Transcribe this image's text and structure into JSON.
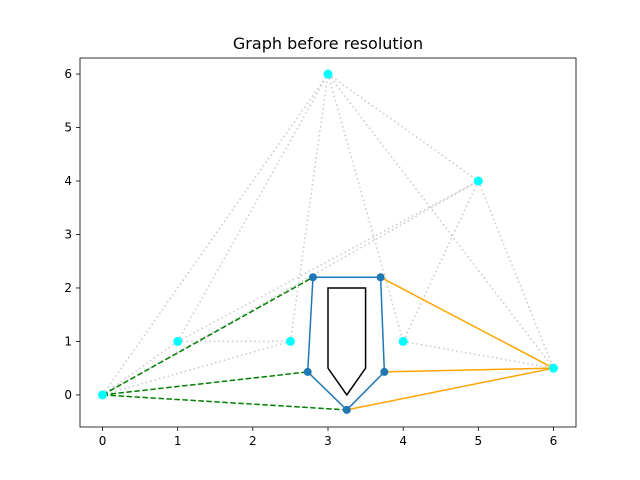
{
  "chart_data": {
    "type": "scatter",
    "title": "Graph before resolution",
    "xlabel": "",
    "ylabel": "",
    "xlim": [
      -0.3,
      6.3
    ],
    "ylim": [
      -0.6,
      6.3
    ],
    "xticks": [
      0,
      1,
      2,
      3,
      4,
      5,
      6
    ],
    "yticks": [
      0,
      1,
      2,
      3,
      4,
      5,
      6
    ],
    "grid": false,
    "colors": {
      "background_edges": "#c8c8c8",
      "nodes": "#00ffff",
      "polygon": "#1f77b4",
      "green_paths": "#008000",
      "orange_paths": "#ffa500",
      "obstacle": "#000000"
    },
    "nodes": [
      {
        "id": "n0",
        "x": 0,
        "y": 0
      },
      {
        "id": "n1",
        "x": 1,
        "y": 1
      },
      {
        "id": "n2",
        "x": 2.5,
        "y": 1
      },
      {
        "id": "n3",
        "x": 3,
        "y": 6
      },
      {
        "id": "n4",
        "x": 4,
        "y": 1
      },
      {
        "id": "n5",
        "x": 5,
        "y": 4
      },
      {
        "id": "n6",
        "x": 6,
        "y": 0.5
      }
    ],
    "background_edges": [
      [
        0,
        1
      ],
      [
        0,
        2
      ],
      [
        0,
        3
      ],
      [
        0,
        5
      ],
      [
        1,
        2
      ],
      [
        1,
        3
      ],
      [
        1,
        5
      ],
      [
        2,
        3
      ],
      [
        3,
        4
      ],
      [
        3,
        5
      ],
      [
        3,
        6
      ],
      [
        4,
        5
      ],
      [
        4,
        6
      ],
      [
        5,
        6
      ]
    ],
    "polygon_vertices": [
      {
        "x": 2.8,
        "y": 2.2
      },
      {
        "x": 3.7,
        "y": 2.2
      },
      {
        "x": 3.75,
        "y": 0.43
      },
      {
        "x": 3.25,
        "y": -0.28
      },
      {
        "x": 2.73,
        "y": 0.43
      }
    ],
    "green_edges": [
      {
        "from": [
          0,
          0
        ],
        "to": [
          2.8,
          2.2
        ]
      },
      {
        "from": [
          0,
          0
        ],
        "to": [
          2.73,
          0.43
        ]
      },
      {
        "from": [
          0,
          0
        ],
        "to": [
          3.25,
          -0.28
        ]
      }
    ],
    "orange_edges": [
      {
        "from": [
          6,
          0.5
        ],
        "to": [
          3.7,
          2.2
        ]
      },
      {
        "from": [
          6,
          0.5
        ],
        "to": [
          3.75,
          0.43
        ]
      },
      {
        "from": [
          6,
          0.5
        ],
        "to": [
          3.25,
          -0.28
        ]
      }
    ],
    "obstacle_outline": [
      {
        "x": 3,
        "y": 2
      },
      {
        "x": 3.5,
        "y": 2
      },
      {
        "x": 3.5,
        "y": 0.5
      },
      {
        "x": 3.25,
        "y": 0
      },
      {
        "x": 3,
        "y": 0.5
      }
    ]
  }
}
